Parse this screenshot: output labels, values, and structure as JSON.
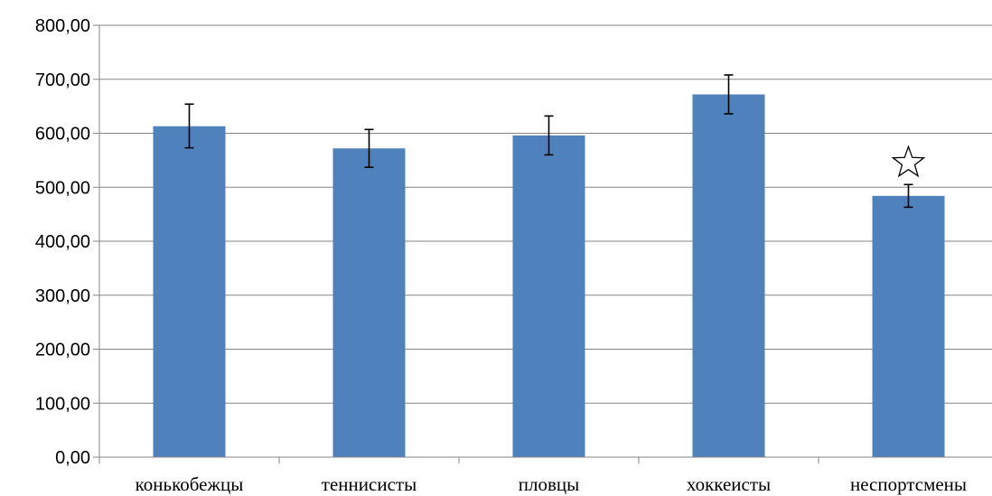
{
  "chart_data": {
    "type": "bar",
    "categories": [
      "конькобежцы",
      "теннисисты",
      "пловцы",
      "хоккеисты",
      "неспортсмены"
    ],
    "values": [
      613,
      572,
      596,
      672,
      484
    ],
    "error_bars": [
      {
        "low": 573,
        "high": 654
      },
      {
        "low": 537,
        "high": 607
      },
      {
        "low": 560,
        "high": 632
      },
      {
        "low": 636,
        "high": 708
      },
      {
        "low": 463,
        "high": 505
      }
    ],
    "annotations": [
      {
        "category": "неспортсмены",
        "symbol": "☆"
      }
    ],
    "ylim": [
      0,
      800
    ],
    "yticks": [
      "0,00",
      "100,00",
      "200,00",
      "300,00",
      "400,00",
      "500,00",
      "600,00",
      "700,00",
      "800,00"
    ],
    "ytick_values": [
      0,
      100,
      200,
      300,
      400,
      500,
      600,
      700,
      800
    ],
    "grid": true,
    "bar_color": "#4F81BD",
    "grid_color": "#868686"
  }
}
